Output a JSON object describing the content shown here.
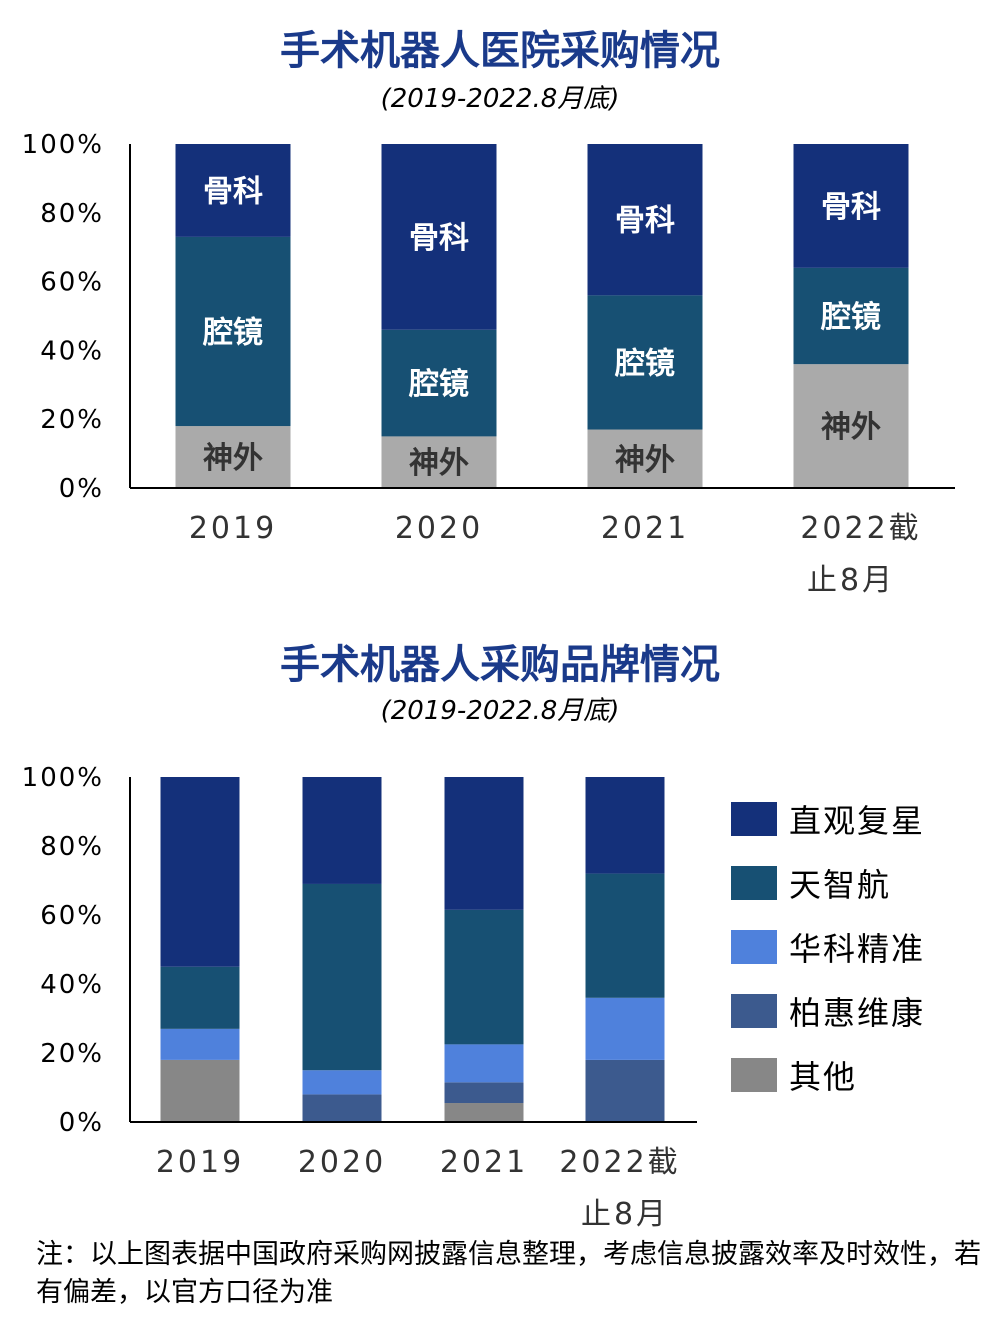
{
  "chart_data": [
    {
      "type": "bar",
      "stacked": true,
      "title": "手术机器人医院采购情况",
      "subtitle": "(2019-2022.8月底)",
      "categories": [
        "2019",
        "2020",
        "2021",
        "2022截止8月"
      ],
      "ylim": [
        0,
        100
      ],
      "yticks": [
        "0%",
        "20%",
        "40%",
        "60%",
        "80%",
        "100%"
      ],
      "series": [
        {
          "name": "神外",
          "values": [
            18,
            15,
            17,
            36
          ],
          "color": "#aaaaaa",
          "label_color": "#333333"
        },
        {
          "name": "腔镜",
          "values": [
            55,
            31,
            39,
            28
          ],
          "color": "#175073",
          "label_color": "#ffffff"
        },
        {
          "name": "骨科",
          "values": [
            27,
            54,
            44,
            36
          ],
          "color": "#14307a",
          "label_color": "#ffffff"
        }
      ],
      "legend": "none",
      "grid": false
    },
    {
      "type": "bar",
      "stacked": true,
      "title": "手术机器人采购品牌情况",
      "subtitle": "(2019-2022.8月底)",
      "categories": [
        "2019",
        "2020",
        "2021",
        "2022截止8月"
      ],
      "ylim": [
        0,
        100
      ],
      "yticks": [
        "0%",
        "20%",
        "40%",
        "60%",
        "80%",
        "100%"
      ],
      "series": [
        {
          "name": "其他",
          "values": [
            18,
            0,
            5.5,
            0
          ],
          "color": "#878787"
        },
        {
          "name": "柏惠维康",
          "values": [
            0,
            8,
            6,
            18
          ],
          "color": "#3c5a8e"
        },
        {
          "name": "华科精准",
          "values": [
            9,
            7,
            11,
            18
          ],
          "color": "#4f81dc"
        },
        {
          "name": "天智航",
          "values": [
            18,
            54,
            39,
            36
          ],
          "color": "#175073"
        },
        {
          "name": "直观复星",
          "values": [
            55,
            31,
            38.5,
            28
          ],
          "color": "#14307a"
        }
      ],
      "legend": "right",
      "grid": false
    }
  ],
  "note": "注：以上图表据中国政府采购网披露信息整理，考虑信息披露效率及时效性，若有偏差，以官方口径为准"
}
